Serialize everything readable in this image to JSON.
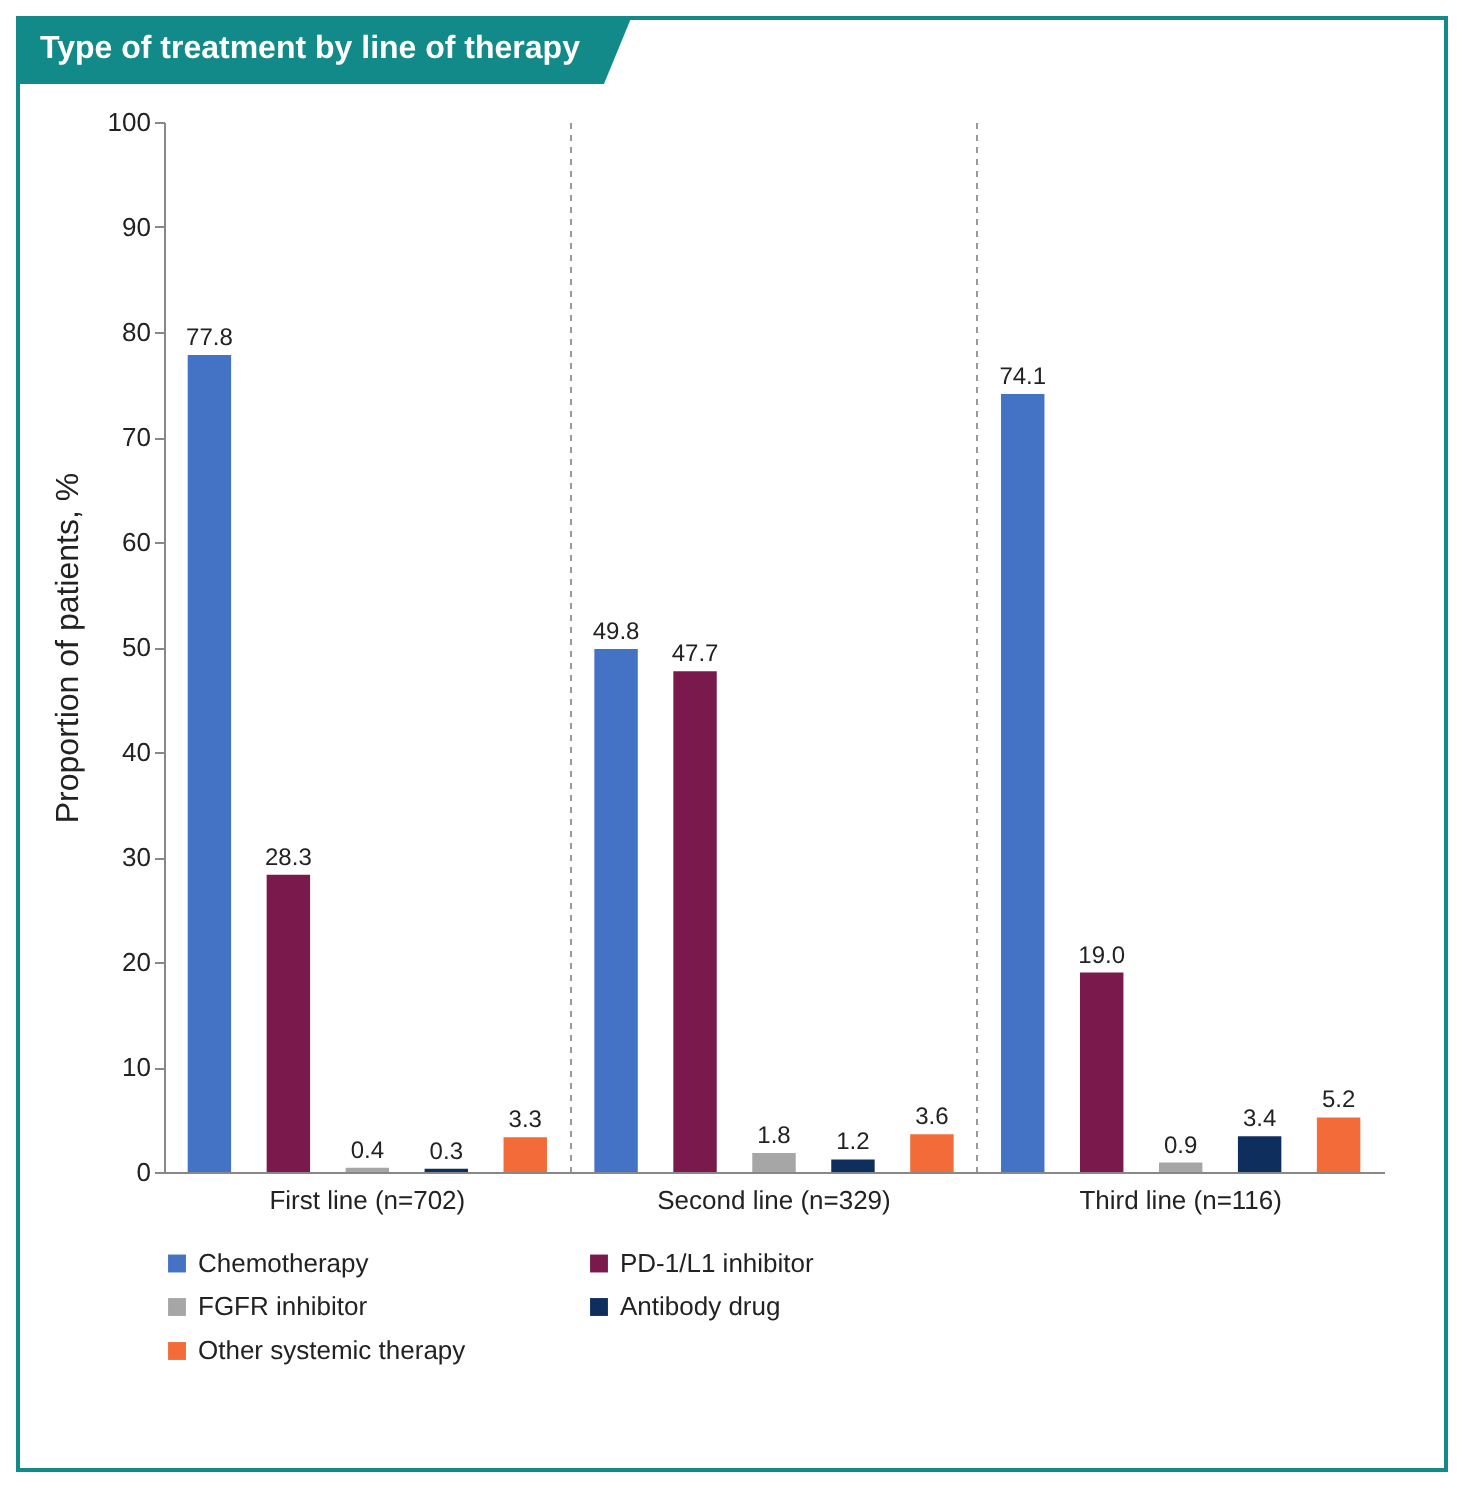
{
  "chart_data": {
    "type": "bar",
    "title": "Type of treatment by line of therapy",
    "ylabel": "Proportion of patients, %",
    "categories": [
      "First line (n=702)",
      "Second line (n=329)",
      "Third line (n=116)"
    ],
    "series": [
      {
        "name": "Chemotherapy",
        "color": "#4472c4",
        "values": [
          77.8,
          49.8,
          74.1
        ],
        "value_labels": [
          "77.8",
          "49.8",
          "74.1"
        ]
      },
      {
        "name": "PD-1/L1 inhibitor",
        "color": "#7a1a4c",
        "values": [
          28.3,
          47.7,
          19.0
        ],
        "value_labels": [
          "28.3",
          "47.7",
          "19.0"
        ]
      },
      {
        "name": "FGFR inhibitor",
        "color": "#a6a6a6",
        "values": [
          0.4,
          1.8,
          0.9
        ],
        "value_labels": [
          "0.4",
          "1.8",
          "0.9"
        ]
      },
      {
        "name": "Antibody drug",
        "color": "#0e2f5e",
        "values": [
          0.3,
          1.2,
          3.4
        ],
        "value_labels": [
          "0.3",
          "1.2",
          "3.4"
        ]
      },
      {
        "name": "Other systemic therapy",
        "color": "#f26b38",
        "values": [
          3.3,
          3.6,
          5.2
        ],
        "value_labels": [
          "3.3",
          "3.6",
          "5.2"
        ]
      }
    ],
    "ylim": [
      0,
      100
    ],
    "yticks": [
      0,
      10,
      20,
      30,
      40,
      50,
      60,
      70,
      80,
      90,
      100
    ],
    "grid": "x",
    "legend": "bottom"
  }
}
